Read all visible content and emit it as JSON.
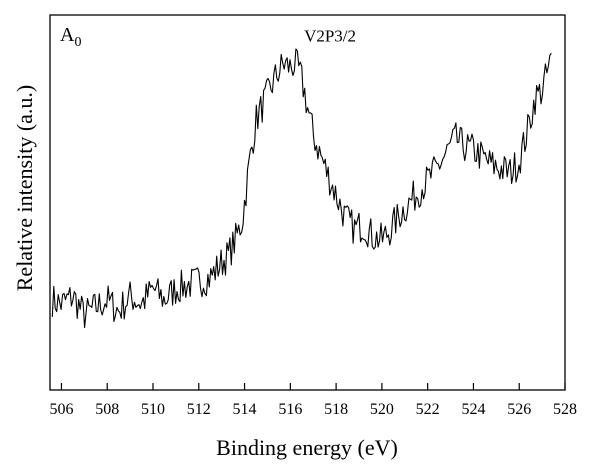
{
  "chart_data": {
    "type": "line",
    "panel_label": "A",
    "panel_label_sub": "0",
    "xlabel": "Binding energy (eV)",
    "ylabel": "Relative intensity (a.u.)",
    "xlim": [
      505.5,
      528
    ],
    "ylim": [
      0,
      1
    ],
    "x_ticks": [
      506,
      508,
      510,
      512,
      514,
      516,
      518,
      520,
      522,
      524,
      526,
      528
    ],
    "y_ticks_shown": false,
    "grid": false,
    "line_color": "#000000",
    "annotations": [
      {
        "text": "V2P3/2",
        "x": 516.6,
        "y": 0.93
      }
    ],
    "series": [
      {
        "x": [
          505.6,
          506.0,
          506.5,
          507.0,
          507.5,
          508.0,
          508.5,
          509.0,
          509.5,
          510.0,
          510.5,
          511.0,
          511.5,
          512.0,
          512.5,
          513.0,
          513.3,
          513.6,
          513.9,
          514.2,
          514.5,
          514.8,
          515.1,
          515.4,
          515.7,
          516.0,
          516.2,
          516.4,
          516.6,
          516.8,
          517.0,
          517.3,
          517.6,
          518.0,
          518.4,
          518.8,
          519.2,
          519.6,
          520.0,
          520.4,
          520.8,
          521.2,
          521.6,
          522.0,
          522.4,
          522.8,
          523.2,
          523.6,
          524.0,
          524.4,
          524.8,
          525.2,
          525.6,
          526.0,
          526.4,
          526.7,
          527.0,
          527.2,
          527.4
        ],
        "y": [
          0.24,
          0.23,
          0.25,
          0.2,
          0.22,
          0.24,
          0.21,
          0.25,
          0.23,
          0.27,
          0.24,
          0.27,
          0.28,
          0.29,
          0.3,
          0.34,
          0.36,
          0.4,
          0.45,
          0.6,
          0.72,
          0.76,
          0.8,
          0.84,
          0.87,
          0.86,
          0.87,
          0.85,
          0.8,
          0.74,
          0.68,
          0.63,
          0.58,
          0.52,
          0.46,
          0.43,
          0.44,
          0.41,
          0.4,
          0.43,
          0.47,
          0.5,
          0.53,
          0.56,
          0.59,
          0.63,
          0.67,
          0.65,
          0.64,
          0.62,
          0.6,
          0.59,
          0.58,
          0.61,
          0.7,
          0.78,
          0.8,
          0.84,
          0.88
        ]
      }
    ]
  }
}
